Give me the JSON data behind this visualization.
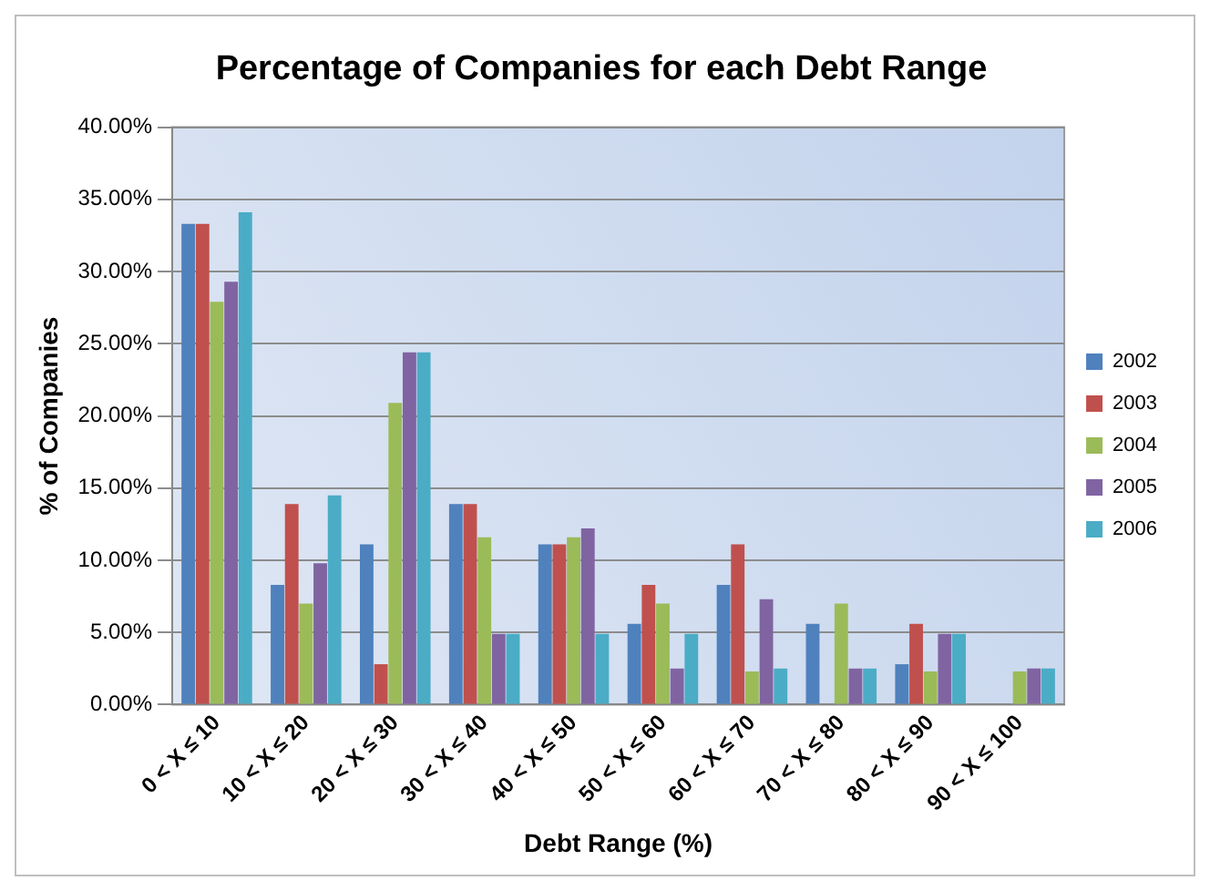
{
  "chart_data": {
    "type": "bar",
    "title": "Percentage of Companies for each Debt Range",
    "xlabel": "Debt Range (%)",
    "ylabel": "% of Companies",
    "categories": [
      "0 < X ≤ 10",
      "10 < X ≤ 20",
      "20 < X ≤ 30",
      "30 < X ≤ 40",
      "40 < X ≤ 50",
      "50 < X ≤ 60",
      "60 < X ≤ 70",
      "70 < X ≤ 80",
      "80 < X ≤ 90",
      "90 < X ≤ 100"
    ],
    "series": [
      {
        "name": "2002",
        "color": "#4f81bd",
        "values": [
          33.3,
          8.3,
          11.1,
          13.9,
          11.1,
          5.6,
          8.3,
          5.6,
          2.8,
          0
        ]
      },
      {
        "name": "2003",
        "color": "#c0504d",
        "values": [
          33.3,
          13.9,
          2.8,
          13.9,
          11.1,
          8.3,
          11.1,
          0,
          5.6,
          0
        ]
      },
      {
        "name": "2004",
        "color": "#9bbb59",
        "values": [
          27.9,
          7.0,
          20.9,
          11.6,
          11.6,
          7.0,
          2.3,
          7.0,
          2.3,
          2.3
        ]
      },
      {
        "name": "2005",
        "color": "#8064a2",
        "values": [
          29.3,
          9.8,
          24.4,
          4.9,
          12.2,
          2.5,
          7.3,
          2.5,
          4.9,
          2.5
        ]
      },
      {
        "name": "2006",
        "color": "#4bacc6",
        "values": [
          34.1,
          14.5,
          24.4,
          4.9,
          4.9,
          4.9,
          2.5,
          2.5,
          4.9,
          2.5
        ]
      }
    ],
    "ylim": [
      0,
      40
    ],
    "yticks": [
      {
        "value": 0,
        "label": "0.00%"
      },
      {
        "value": 5,
        "label": "5.00%"
      },
      {
        "value": 10,
        "label": "10.00%"
      },
      {
        "value": 15,
        "label": "15.00%"
      },
      {
        "value": 20,
        "label": "20.00%"
      },
      {
        "value": 25,
        "label": "25.00%"
      },
      {
        "value": 30,
        "label": "30.00%"
      },
      {
        "value": 35,
        "label": "35.00%"
      },
      {
        "value": 40,
        "label": "40.00%"
      }
    ],
    "grid": "y",
    "legend": "right"
  }
}
